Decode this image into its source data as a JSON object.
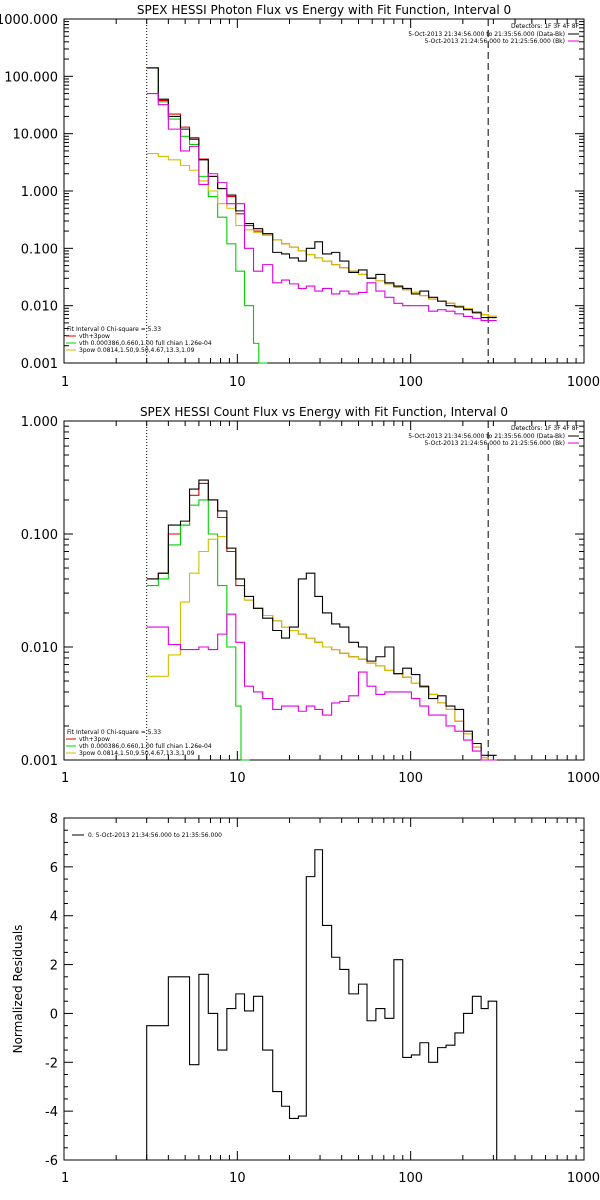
{
  "chart_data": [
    {
      "type": "line",
      "title": "SPEX HESSI Photon Flux vs Energy with Fit Function, Interval 0",
      "ylabel": "",
      "x_scale": "log",
      "y_scale": "log",
      "xlim": [
        1,
        1000
      ],
      "ylim": [
        0.001,
        1000
      ],
      "xticks": [
        "1",
        "10",
        "100",
        "1000"
      ],
      "yticks": [
        "0.001",
        "0.010",
        "0.100",
        "1.000",
        "10.000",
        "100.000",
        "1000.000"
      ],
      "detectors_label": "Detectors: 1F 3F 4F 8F",
      "data_legend": [
        {
          "text": "5-Oct-2013 21:34:56.000 to 21:35:56.000 (Data-Bk)",
          "color": "#000000"
        },
        {
          "text": "5-Oct-2013 21:24:56.000 to 21:25:56.000 (Bk)",
          "color": "#e000e0"
        }
      ],
      "fit_legend": [
        {
          "text": "Fit Interval 0   Chi-square = 5.33",
          "color": "#000000"
        },
        {
          "text": "vth+3pow",
          "color": "#e00000"
        },
        {
          "text": "vth 0.000386,0.660,1.00  full chian 1.26e-04",
          "color": "#00d000"
        },
        {
          "text": "3pow 0.0814,1.50,9.50,4.67,13.3,1.09",
          "color": "#d0c000"
        }
      ],
      "fit_range": [
        3,
        280
      ],
      "series": [
        {
          "name": "5-Oct-2013 21:34:56.000 to 21:35:56.000 (Data-Bk)",
          "color": "#000000",
          "x": [
            3,
            3.5,
            4,
            4.7,
            5.3,
            6,
            6.8,
            7.7,
            8.7,
            9.8,
            11,
            12.4,
            14,
            16,
            18,
            20,
            22.5,
            25,
            28,
            31,
            35,
            39,
            44,
            50,
            56,
            63,
            71,
            80,
            90,
            101,
            113,
            127,
            143,
            160,
            180,
            202,
            227,
            255,
            280
          ],
          "y": [
            140,
            40,
            20,
            12,
            8,
            3.5,
            1.8,
            1.1,
            0.85,
            0.45,
            0.27,
            0.22,
            0.18,
            0.085,
            0.08,
            0.068,
            0.06,
            0.1,
            0.13,
            0.08,
            0.085,
            0.06,
            0.038,
            0.042,
            0.03,
            0.035,
            0.025,
            0.022,
            0.02,
            0.016,
            0.018,
            0.014,
            0.012,
            0.01,
            0.0095,
            0.0085,
            0.0075,
            0.0062,
            0.0062
          ]
        },
        {
          "name": "5-Oct-2013 21:24:56.000 to 21:25:56.000 (Bk)",
          "color": "#e000e0",
          "x": [
            3,
            3.5,
            4,
            4.7,
            5.3,
            6,
            6.8,
            7.7,
            8.7,
            9.8,
            11,
            12.4,
            14,
            16,
            18,
            20,
            22.5,
            25,
            28,
            31,
            35,
            39,
            44,
            50,
            56,
            63,
            71,
            80,
            90,
            101,
            113,
            127,
            143,
            160,
            180,
            202,
            227,
            255,
            280
          ],
          "y": [
            50,
            32,
            12,
            5,
            6,
            1.3,
            2.0,
            1.4,
            0.6,
            0.6,
            0.1,
            0.04,
            0.052,
            0.025,
            0.028,
            0.024,
            0.02,
            0.022,
            0.018,
            0.02,
            0.016,
            0.018,
            0.016,
            0.017,
            0.025,
            0.018,
            0.014,
            0.011,
            0.01,
            0.01,
            0.01,
            0.008,
            0.0085,
            0.008,
            0.0072,
            0.0065,
            0.006,
            0.0055,
            0.0055
          ]
        }
      ],
      "fits": [
        {
          "name": "vth+3pow",
          "color": "#e00000",
          "x": [
            3,
            3.5,
            4,
            4.7,
            5.3,
            6,
            6.8,
            7.7,
            8.7,
            9.8,
            11,
            12.4,
            14,
            16,
            18,
            20,
            22.5,
            25,
            28,
            31,
            35,
            39,
            44,
            50,
            56,
            63,
            71,
            80,
            90,
            101,
            113,
            127,
            143,
            160,
            180,
            202,
            227,
            255,
            280
          ],
          "y": [
            140,
            38,
            22,
            13,
            8.5,
            3.6,
            1.8,
            1.1,
            0.8,
            0.4,
            0.25,
            0.2,
            0.17,
            0.14,
            0.12,
            0.105,
            0.09,
            0.078,
            0.068,
            0.06,
            0.052,
            0.046,
            0.04,
            0.035,
            0.031,
            0.027,
            0.024,
            0.021,
            0.019,
            0.017,
            0.015,
            0.013,
            0.012,
            0.011,
            0.0098,
            0.0088,
            0.0078,
            0.007,
            0.0066
          ]
        },
        {
          "name": "vth",
          "color": "#00d000",
          "x": [
            3,
            3.5,
            4,
            4.7,
            5.3,
            6,
            6.8,
            7.7,
            8.7,
            9.8,
            11,
            12.4,
            13.3
          ],
          "y": [
            140,
            36,
            18,
            9,
            6.5,
            1.8,
            0.8,
            0.35,
            0.12,
            0.04,
            0.01,
            0.0022,
            0.001
          ]
        },
        {
          "name": "3pow",
          "color": "#d0c000",
          "x": [
            3,
            3.5,
            4,
            4.7,
            5.3,
            6,
            6.8,
            7.7,
            8.7,
            9.8,
            11,
            12.4,
            14,
            16,
            18,
            20,
            22.5,
            25,
            28,
            31,
            35,
            39,
            44,
            50,
            56,
            63,
            71,
            80,
            90,
            101,
            113,
            127,
            143,
            160,
            180,
            202,
            227,
            255,
            280
          ],
          "y": [
            4.5,
            4.0,
            3.5,
            2.8,
            2.3,
            1.5,
            1.0,
            0.6,
            0.5,
            0.25,
            0.21,
            0.19,
            0.17,
            0.14,
            0.12,
            0.105,
            0.09,
            0.078,
            0.068,
            0.06,
            0.052,
            0.046,
            0.04,
            0.035,
            0.031,
            0.027,
            0.024,
            0.021,
            0.019,
            0.017,
            0.015,
            0.013,
            0.012,
            0.011,
            0.0098,
            0.0088,
            0.0078,
            0.007,
            0.0066
          ]
        }
      ]
    },
    {
      "type": "line",
      "title": "SPEX HESSI Count Flux vs Energy with Fit Function, Interval 0",
      "ylabel": "",
      "x_scale": "log",
      "y_scale": "log",
      "xlim": [
        1,
        1000
      ],
      "ylim": [
        0.001,
        1
      ],
      "xticks": [
        "1",
        "10",
        "100",
        "1000"
      ],
      "yticks": [
        "0.001",
        "0.010",
        "0.100",
        "1.000"
      ],
      "detectors_label": "Detectors: 1F 3F 4F 8F",
      "data_legend": [
        {
          "text": "5-Oct-2013 21:34:56.000 to 21:35:56.000 (Data-Bk)",
          "color": "#000000"
        },
        {
          "text": "5-Oct-2013 21:24:56.000 to 21:25:56.000 (Bk)",
          "color": "#e000e0"
        }
      ],
      "fit_legend": [
        {
          "text": "Fit Interval 0   Chi-square = 5.33",
          "color": "#000000"
        },
        {
          "text": "vth+3pow",
          "color": "#e00000"
        },
        {
          "text": "vth 0.000386,0.660,1.00  full chian 1.26e-04",
          "color": "#00d000"
        },
        {
          "text": "3pow 0.0814,1.50,9.50,4.67,13.3,1.09",
          "color": "#d0c000"
        }
      ],
      "fit_range": [
        3,
        280
      ],
      "series": [
        {
          "name": "5-Oct-2013 21:34:56.000 to 21:35:56.000 (Data-Bk)",
          "color": "#000000",
          "x": [
            3,
            3.5,
            4,
            4.7,
            5.3,
            6,
            6.8,
            7.7,
            8.7,
            9.8,
            11,
            12.4,
            14,
            16,
            18,
            20,
            22.5,
            25,
            28,
            31,
            35,
            39,
            44,
            50,
            56,
            63,
            71,
            80,
            90,
            101,
            113,
            127,
            143,
            160,
            180,
            202,
            227,
            255,
            280
          ],
          "y": [
            0.04,
            0.045,
            0.12,
            0.13,
            0.25,
            0.3,
            0.2,
            0.16,
            0.075,
            0.04,
            0.028,
            0.022,
            0.018,
            0.014,
            0.012,
            0.015,
            0.04,
            0.045,
            0.028,
            0.02,
            0.016,
            0.015,
            0.011,
            0.01,
            0.0075,
            0.0082,
            0.01,
            0.0058,
            0.0065,
            0.0057,
            0.0045,
            0.0035,
            0.0037,
            0.003,
            0.0028,
            0.0018,
            0.0014,
            0.0011,
            0.0011
          ]
        },
        {
          "name": "5-Oct-2013 21:24:56.000 to 21:25:56.000 (Bk)",
          "color": "#e000e0",
          "x": [
            3,
            3.5,
            4,
            4.7,
            5.3,
            6,
            6.8,
            7.7,
            8.7,
            9.8,
            11,
            12.4,
            14,
            16,
            18,
            20,
            22.5,
            25,
            28,
            31,
            35,
            39,
            44,
            50,
            56,
            63,
            71,
            80,
            90,
            101,
            113,
            127,
            143,
            160,
            180,
            202,
            227,
            255,
            280
          ],
          "y": [
            0.015,
            0.015,
            0.0105,
            0.0095,
            0.0095,
            0.01,
            0.0095,
            0.013,
            0.0195,
            0.011,
            0.0045,
            0.004,
            0.0035,
            0.0028,
            0.003,
            0.003,
            0.0027,
            0.003,
            0.0028,
            0.0025,
            0.0032,
            0.0033,
            0.0037,
            0.006,
            0.0045,
            0.0038,
            0.004,
            0.004,
            0.004,
            0.0035,
            0.003,
            0.0025,
            0.0025,
            0.002,
            0.0018,
            0.0015,
            0.0012,
            0.001,
            0.001
          ]
        }
      ],
      "fits": [
        {
          "name": "vth+3pow",
          "color": "#e00000",
          "x": [
            3,
            3.5,
            4,
            4.7,
            5.3,
            6,
            6.8,
            7.7,
            8.7,
            9.8,
            11,
            12.4,
            14,
            16,
            18,
            20,
            22.5,
            25,
            28,
            31,
            35,
            39,
            44,
            50,
            56,
            63,
            71,
            80,
            90,
            101,
            113,
            127,
            143,
            160,
            180,
            202,
            227,
            255,
            280
          ],
          "y": [
            0.04,
            0.045,
            0.1,
            0.12,
            0.22,
            0.28,
            0.2,
            0.14,
            0.07,
            0.035,
            0.026,
            0.022,
            0.019,
            0.017,
            0.015,
            0.014,
            0.013,
            0.012,
            0.011,
            0.01,
            0.0095,
            0.0088,
            0.0082,
            0.0078,
            0.0072,
            0.0068,
            0.0062,
            0.0058,
            0.0054,
            0.0048,
            0.0044,
            0.0038,
            0.0032,
            0.0028,
            0.0022,
            0.0017,
            0.0013,
            0.00105,
            0.001
          ]
        },
        {
          "name": "vth",
          "color": "#00d000",
          "x": [
            3,
            3.5,
            4,
            4.7,
            5.3,
            6,
            6.8,
            7.7,
            8.7,
            9.8,
            10.5
          ],
          "y": [
            0.035,
            0.04,
            0.08,
            0.12,
            0.18,
            0.2,
            0.1,
            0.035,
            0.01,
            0.003,
            0.001
          ]
        },
        {
          "name": "3pow",
          "color": "#d0c000",
          "x": [
            3,
            3.5,
            4,
            4.7,
            5.3,
            6,
            6.8,
            7.7,
            8.7,
            9.8,
            11,
            12.4,
            14,
            16,
            18,
            20,
            22.5,
            25,
            28,
            31,
            35,
            39,
            44,
            50,
            56,
            63,
            71,
            80,
            90,
            101,
            113,
            127,
            143,
            160,
            180,
            202,
            227,
            255,
            280
          ],
          "y": [
            0.0055,
            0.0055,
            0.0085,
            0.025,
            0.045,
            0.07,
            0.09,
            0.095,
            0.075,
            0.04,
            0.026,
            0.022,
            0.019,
            0.017,
            0.015,
            0.014,
            0.013,
            0.012,
            0.011,
            0.01,
            0.0095,
            0.0088,
            0.0082,
            0.0078,
            0.0072,
            0.0068,
            0.0062,
            0.0058,
            0.0054,
            0.0048,
            0.0044,
            0.0038,
            0.0032,
            0.0028,
            0.0022,
            0.0017,
            0.0013,
            0.00105,
            0.001
          ]
        }
      ]
    },
    {
      "type": "line",
      "title": "",
      "ylabel": "Normalized Residuals",
      "x_scale": "log",
      "y_scale": "linear",
      "xlim": [
        1,
        1000
      ],
      "ylim": [
        -6,
        8
      ],
      "xticks": [
        "1",
        "10",
        "100",
        "1000"
      ],
      "yticks": [
        "-6",
        "-4",
        "-2",
        "0",
        "2",
        "4",
        "6",
        "8"
      ],
      "legend": [
        {
          "text": "0. 5-Oct-2013 21:34:56.000 to 21:35:56.000",
          "color": "#000000"
        }
      ],
      "series": [
        {
          "name": "0. 5-Oct-2013 21:34:56.000 to 21:35:56.000",
          "color": "#000000",
          "x": [
            3,
            3.5,
            4,
            4.7,
            5.3,
            6,
            6.8,
            7.7,
            8.7,
            9.8,
            11,
            12.4,
            14,
            16,
            18,
            20,
            22.5,
            25,
            28,
            31,
            35,
            39,
            44,
            50,
            56,
            63,
            71,
            80,
            90,
            101,
            113,
            127,
            143,
            160,
            180,
            202,
            227,
            255,
            280
          ],
          "y": [
            -0.5,
            -0.5,
            1.5,
            1.5,
            -2.1,
            1.6,
            0.0,
            -1.5,
            0.2,
            0.8,
            0.1,
            0.7,
            -1.5,
            -3.2,
            -3.8,
            -4.3,
            -4.2,
            5.6,
            6.7,
            3.6,
            2.3,
            1.8,
            0.8,
            1.2,
            -0.3,
            0.2,
            -0.2,
            2.2,
            -1.8,
            -1.7,
            -1.2,
            -2.0,
            -1.4,
            -1.3,
            -0.8,
            0.0,
            0.7,
            0.2,
            0.5
          ]
        }
      ]
    }
  ]
}
